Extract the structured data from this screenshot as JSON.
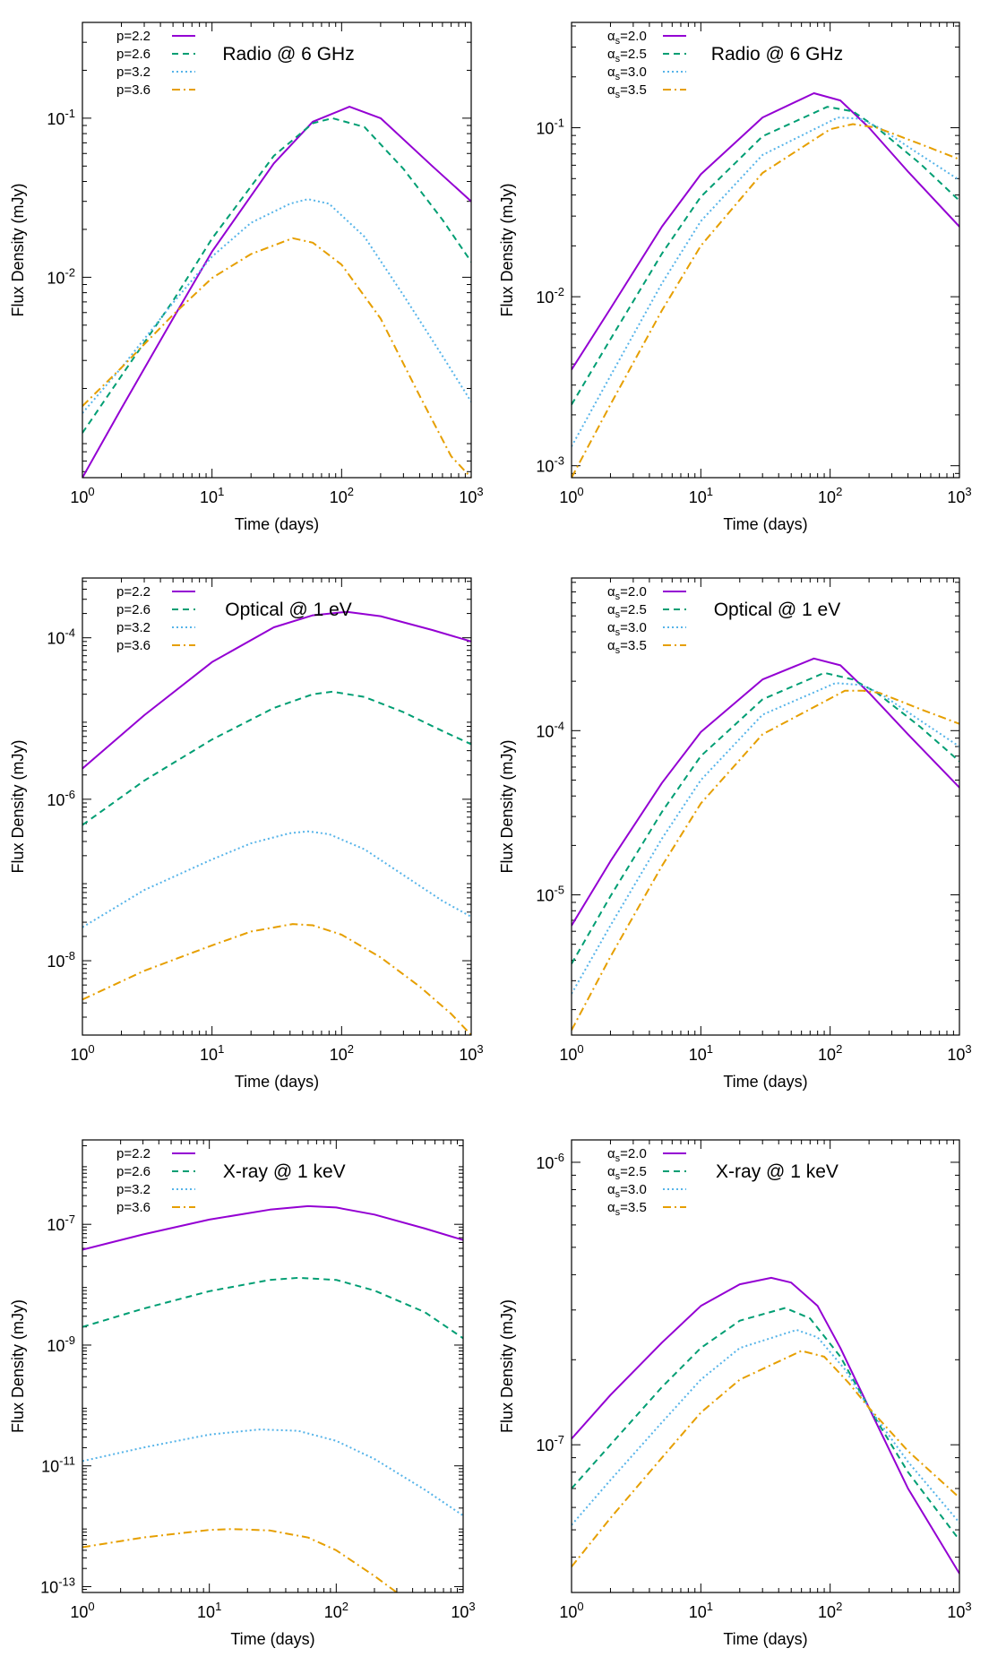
{
  "colors": {
    "series_1": "#9400d3",
    "series_2": "#009e73",
    "series_3": "#56b4e9",
    "series_4": "#e69f00"
  },
  "chart_data": [
    {
      "id": "radio-p",
      "type": "line",
      "title": "Radio @ 6 GHz",
      "xlabel": "Time (days)",
      "ylabel": "Flux Density (mJy)",
      "xscale": "log",
      "yscale": "log",
      "xlim": [
        1,
        1000
      ],
      "ylim": [
        0.00055,
        0.4
      ],
      "xticks": [
        {
          "v": 1,
          "label": "10^0"
        },
        {
          "v": 10,
          "label": "10^1"
        },
        {
          "v": 100,
          "label": "10^2"
        },
        {
          "v": 1000,
          "label": "10^3"
        }
      ],
      "yticks": [
        {
          "v": 0.01,
          "label": "10^-2"
        },
        {
          "v": 0.1,
          "label": "10^-1"
        }
      ],
      "legend": "top-left",
      "series": [
        {
          "name": "p=2.2",
          "x": [
            1,
            2,
            5,
            10,
            30,
            60,
            115,
            200,
            500,
            1000
          ],
          "y": [
            0.00055,
            0.0015,
            0.0055,
            0.0145,
            0.052,
            0.095,
            0.118,
            0.1,
            0.05,
            0.03
          ]
        },
        {
          "name": "p=2.6",
          "x": [
            1,
            2,
            5,
            10,
            30,
            60,
            85,
            150,
            300,
            600,
            1000
          ],
          "y": [
            0.00105,
            0.0024,
            0.0071,
            0.0175,
            0.058,
            0.093,
            0.1,
            0.088,
            0.048,
            0.023,
            0.0125
          ]
        },
        {
          "name": "p=3.2",
          "x": [
            1,
            2,
            5,
            10,
            20,
            40,
            55,
            80,
            150,
            300,
            600,
            1000
          ],
          "y": [
            0.0014,
            0.0027,
            0.0069,
            0.0135,
            0.022,
            0.029,
            0.031,
            0.029,
            0.018,
            0.0077,
            0.0032,
            0.00165
          ]
        },
        {
          "name": "p=3.6",
          "x": [
            1,
            2,
            5,
            10,
            20,
            42,
            60,
            100,
            200,
            400,
            700,
            1000
          ],
          "y": [
            0.00155,
            0.0027,
            0.0058,
            0.0099,
            0.014,
            0.0176,
            0.0165,
            0.012,
            0.0055,
            0.0018,
            0.00075,
            0.00055
          ]
        }
      ]
    },
    {
      "id": "radio-alpha",
      "type": "line",
      "title": "Radio @ 6 GHz",
      "xlabel": "Time (days)",
      "ylabel": "Flux Density (mJy)",
      "xscale": "log",
      "yscale": "log",
      "xlim": [
        1,
        1000
      ],
      "ylim": [
        0.00085,
        0.42
      ],
      "xticks": [
        {
          "v": 1,
          "label": "10^0"
        },
        {
          "v": 10,
          "label": "10^1"
        },
        {
          "v": 100,
          "label": "10^2"
        },
        {
          "v": 1000,
          "label": "10^3"
        }
      ],
      "yticks": [
        {
          "v": 0.001,
          "label": "10^-3"
        },
        {
          "v": 0.01,
          "label": "10^-2"
        },
        {
          "v": 0.1,
          "label": "10^-1"
        }
      ],
      "legend": "top-left",
      "series": [
        {
          "name": "α_s=2.0",
          "x": [
            1,
            2,
            5,
            10,
            30,
            75,
            120,
            200,
            400,
            1000
          ],
          "y": [
            0.0037,
            0.0085,
            0.026,
            0.053,
            0.115,
            0.16,
            0.145,
            0.1,
            0.055,
            0.026
          ]
        },
        {
          "name": "α_s=2.5",
          "x": [
            1,
            2,
            5,
            10,
            30,
            95,
            150,
            230,
            500,
            1000
          ],
          "y": [
            0.0023,
            0.0056,
            0.018,
            0.039,
            0.089,
            0.133,
            0.125,
            0.1,
            0.061,
            0.037
          ]
        },
        {
          "name": "α_s=3.0",
          "x": [
            1,
            2,
            5,
            10,
            30,
            115,
            170,
            240,
            500,
            1000
          ],
          "y": [
            0.0013,
            0.0034,
            0.012,
            0.028,
            0.069,
            0.115,
            0.113,
            0.1,
            0.069,
            0.049
          ]
        },
        {
          "name": "α_s=3.5",
          "x": [
            1,
            2,
            5,
            10,
            30,
            100,
            150,
            230,
            500,
            1000
          ],
          "y": [
            0.00085,
            0.0023,
            0.0083,
            0.02,
            0.054,
            0.098,
            0.105,
            0.1,
            0.08,
            0.065
          ]
        }
      ]
    },
    {
      "id": "optical-p",
      "type": "line",
      "title": "Optical @ 1 eV",
      "xlabel": "Time (days)",
      "ylabel": "Flux Density (mJy)",
      "xscale": "log",
      "yscale": "log",
      "xlim": [
        1,
        1000
      ],
      "ylim": [
        1.2e-09,
        0.00055
      ],
      "xticks": [
        {
          "v": 1,
          "label": "10^0"
        },
        {
          "v": 10,
          "label": "10^1"
        },
        {
          "v": 100,
          "label": "10^2"
        },
        {
          "v": 1000,
          "label": "10^3"
        }
      ],
      "yticks": [
        {
          "v": 1e-08,
          "label": "10^-8"
        },
        {
          "v": 1e-06,
          "label": "10^-6"
        },
        {
          "v": 0.0001,
          "label": "10^-4"
        }
      ],
      "legend": "top-left",
      "series": [
        {
          "name": "p=2.2",
          "x": [
            1,
            3,
            10,
            30,
            60,
            110,
            200,
            500,
            1000
          ],
          "y": [
            2.4e-06,
            1.1e-05,
            5e-05,
            0.000135,
            0.00019,
            0.00021,
            0.000185,
            0.000125,
            9e-05
          ]
        },
        {
          "name": "p=2.6",
          "x": [
            1,
            3,
            10,
            30,
            60,
            85,
            150,
            300,
            600,
            1000
          ],
          "y": [
            4.8e-07,
            1.7e-06,
            5.5e-06,
            1.35e-05,
            2e-05,
            2.15e-05,
            1.85e-05,
            1.2e-05,
            7e-06,
            4.8e-06
          ]
        },
        {
          "name": "p=3.2",
          "x": [
            1,
            3,
            10,
            20,
            40,
            55,
            80,
            150,
            300,
            600,
            1000
          ],
          "y": [
            2.6e-08,
            7.5e-08,
            1.8e-07,
            2.85e-07,
            3.8e-07,
            4e-07,
            3.7e-07,
            2.4e-07,
            1.15e-07,
            5.5e-08,
            3.5e-08
          ]
        },
        {
          "name": "p=3.6",
          "x": [
            1,
            3,
            10,
            20,
            42,
            60,
            100,
            200,
            400,
            700,
            1000
          ],
          "y": [
            3.3e-09,
            7.5e-09,
            1.55e-08,
            2.3e-08,
            2.85e-08,
            2.75e-08,
            2.1e-08,
            1.1e-08,
            4.8e-09,
            2.2e-09,
            1.2e-09
          ]
        }
      ]
    },
    {
      "id": "optical-alpha",
      "type": "line",
      "title": "Optical @ 1 eV",
      "xlabel": "Time (days)",
      "ylabel": "Flux Density (mJy)",
      "xscale": "log",
      "yscale": "log",
      "xlim": [
        1,
        1000
      ],
      "ylim": [
        1.4e-06,
        0.00085
      ],
      "xticks": [
        {
          "v": 1,
          "label": "10^0"
        },
        {
          "v": 10,
          "label": "10^1"
        },
        {
          "v": 100,
          "label": "10^2"
        },
        {
          "v": 1000,
          "label": "10^3"
        }
      ],
      "yticks": [
        {
          "v": 1e-05,
          "label": "10^-5"
        },
        {
          "v": 0.0001,
          "label": "10^-4"
        }
      ],
      "legend": "top-left",
      "series": [
        {
          "name": "α_s=2.0",
          "x": [
            1,
            2,
            5,
            10,
            30,
            75,
            120,
            200,
            400,
            1000
          ],
          "y": [
            6.5e-06,
            1.6e-05,
            4.8e-05,
            9.8e-05,
            0.000205,
            0.000275,
            0.00025,
            0.00017,
            9.5e-05,
            4.5e-05
          ]
        },
        {
          "name": "α_s=2.5",
          "x": [
            1,
            2,
            5,
            10,
            30,
            90,
            150,
            230,
            500,
            1000
          ],
          "y": [
            3.8e-06,
            9.8e-06,
            3.2e-05,
            7e-05,
            0.000155,
            0.000225,
            0.000205,
            0.00017,
            0.000105,
            6.5e-05
          ]
        },
        {
          "name": "α_s=3.0",
          "x": [
            1,
            2,
            5,
            10,
            30,
            110,
            170,
            240,
            500,
            1000
          ],
          "y": [
            2.5e-06,
            6.5e-06,
            2.2e-05,
            5e-05,
            0.000125,
            0.000195,
            0.00019,
            0.00017,
            0.000115,
            8e-05
          ]
        },
        {
          "name": "α_s=3.5",
          "x": [
            1,
            2,
            5,
            10,
            30,
            130,
            180,
            240,
            500,
            1000
          ],
          "y": [
            1.5e-06,
            4.2e-06,
            1.5e-05,
            3.6e-05,
            9.5e-05,
            0.000175,
            0.000175,
            0.00017,
            0.000135,
            0.00011
          ]
        }
      ]
    },
    {
      "id": "xray-p",
      "type": "line",
      "title": "X-ray @ 1 keV",
      "xlabel": "Time (days)",
      "ylabel": "Flux Density (mJy)",
      "xscale": "log",
      "yscale": "log",
      "xlim": [
        1,
        1000
      ],
      "ylim": [
        8e-14,
        2.5e-06
      ],
      "xticks": [
        {
          "v": 1,
          "label": "10^0"
        },
        {
          "v": 10,
          "label": "10^1"
        },
        {
          "v": 100,
          "label": "10^2"
        },
        {
          "v": 1000,
          "label": "10^3"
        }
      ],
      "yticks": [
        {
          "v": 1e-13,
          "label": "10^-13"
        },
        {
          "v": 1e-11,
          "label": "10^-11"
        },
        {
          "v": 1e-09,
          "label": "10^-9"
        },
        {
          "v": 1e-07,
          "label": "10^-7"
        }
      ],
      "legend": "top-left",
      "series": [
        {
          "name": "p=2.2",
          "x": [
            1,
            3,
            10,
            30,
            60,
            100,
            200,
            500,
            1000
          ],
          "y": [
            3.8e-08,
            6.8e-08,
            1.2e-07,
            1.75e-07,
            2e-07,
            1.9e-07,
            1.45e-07,
            8.5e-08,
            5.5e-08
          ]
        },
        {
          "name": "p=2.6",
          "x": [
            1,
            3,
            10,
            30,
            50,
            100,
            200,
            500,
            1000
          ],
          "y": [
            2e-09,
            4e-09,
            7.8e-09,
            1.2e-08,
            1.3e-08,
            1.2e-08,
            8e-09,
            3.5e-09,
            1.3e-09
          ]
        },
        {
          "name": "p=3.2",
          "x": [
            1,
            3,
            10,
            25,
            50,
            100,
            200,
            500,
            1000
          ],
          "y": [
            1.2e-11,
            2e-11,
            3.3e-11,
            4e-11,
            3.8e-11,
            2.6e-11,
            1.3e-11,
            4e-12,
            1.5e-12
          ]
        },
        {
          "name": "p=3.6",
          "x": [
            1,
            3,
            10,
            15,
            30,
            60,
            100,
            200,
            300
          ],
          "y": [
            4.5e-13,
            6.5e-13,
            8.7e-13,
            9e-13,
            8.5e-13,
            6.5e-13,
            4e-13,
            1.5e-13,
            8e-14
          ]
        }
      ]
    },
    {
      "id": "xray-alpha",
      "type": "line",
      "title": "X-ray @ 1 keV",
      "xlabel": "Time (days)",
      "ylabel": "Flux Density (mJy)",
      "xscale": "log",
      "yscale": "log",
      "xlim": [
        1,
        1000
      ],
      "ylim": [
        3e-08,
        1.2e-06
      ],
      "xticks": [
        {
          "v": 1,
          "label": "10^0"
        },
        {
          "v": 10,
          "label": "10^1"
        },
        {
          "v": 100,
          "label": "10^2"
        },
        {
          "v": 1000,
          "label": "10^3"
        }
      ],
      "yticks": [
        {
          "v": 1e-07,
          "label": "10^-7"
        },
        {
          "v": 1e-06,
          "label": "10^-6"
        }
      ],
      "legend": "top-left",
      "series": [
        {
          "name": "α_s=2.0",
          "x": [
            1,
            2,
            5,
            10,
            20,
            35,
            50,
            80,
            120,
            200,
            400,
            1000
          ],
          "y": [
            1.05e-07,
            1.5e-07,
            2.3e-07,
            3.1e-07,
            3.7e-07,
            3.9e-07,
            3.75e-07,
            3.1e-07,
            2.2e-07,
            1.35e-07,
            7e-08,
            3.5e-08
          ]
        },
        {
          "name": "α_s=2.5",
          "x": [
            1,
            2,
            5,
            10,
            20,
            45,
            70,
            120,
            200,
            400,
            1000
          ],
          "y": [
            7e-08,
            1e-07,
            1.6e-07,
            2.2e-07,
            2.75e-07,
            3.05e-07,
            2.8e-07,
            2.05e-07,
            1.35e-07,
            8e-08,
            4.6e-08
          ]
        },
        {
          "name": "α_s=3.0",
          "x": [
            1,
            2,
            5,
            10,
            20,
            55,
            80,
            130,
            200,
            400,
            1000
          ],
          "y": [
            5.2e-08,
            7.5e-08,
            1.2e-07,
            1.7e-07,
            2.2e-07,
            2.55e-07,
            2.4e-07,
            1.85e-07,
            1.35e-07,
            8.7e-08,
            5.3e-08
          ]
        },
        {
          "name": "α_s=3.5",
          "x": [
            1,
            2,
            5,
            10,
            20,
            60,
            90,
            140,
            200,
            400,
            1000
          ],
          "y": [
            3.7e-08,
            5.5e-08,
            9e-08,
            1.3e-07,
            1.7e-07,
            2.15e-07,
            2.05e-07,
            1.65e-07,
            1.35e-07,
            9.5e-08,
            6.5e-08
          ]
        }
      ]
    }
  ]
}
